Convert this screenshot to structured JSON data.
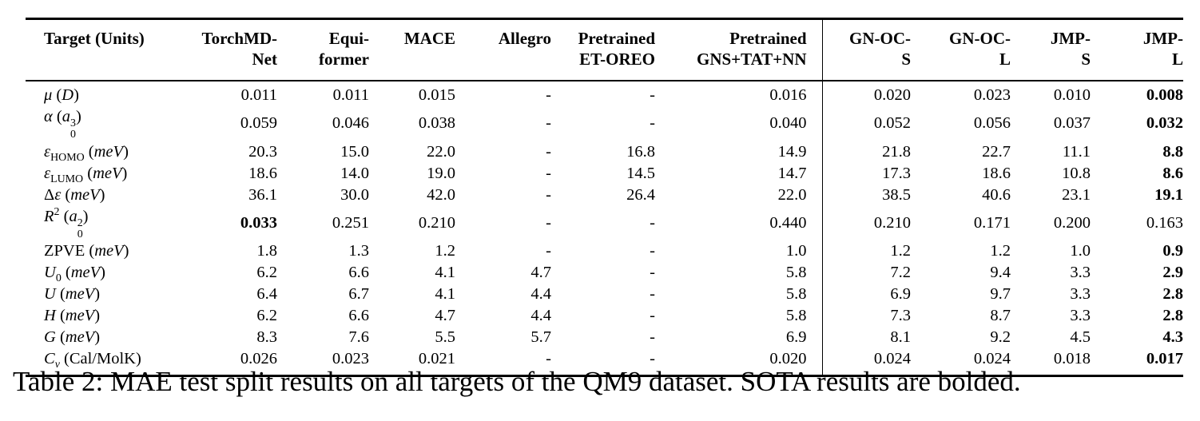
{
  "caption": "Table 2: MAE test split results on all targets of the QM9 dataset. SOTA results are bolded.",
  "table": {
    "columns": [
      {
        "name": "target-units",
        "label_lines": [
          "Target (Units)"
        ],
        "align": "left"
      },
      {
        "name": "torchmd-net",
        "label_lines": [
          "TorchMD-",
          "Net"
        ],
        "align": "right"
      },
      {
        "name": "equiformer",
        "label_lines": [
          "Equi-",
          "former"
        ],
        "align": "right"
      },
      {
        "name": "mace",
        "label_lines": [
          "MACE"
        ],
        "align": "right"
      },
      {
        "name": "allegro",
        "label_lines": [
          "Allegro"
        ],
        "align": "right"
      },
      {
        "name": "pretrained-et-oreo",
        "label_lines": [
          "Pretrained",
          "ET-OREO"
        ],
        "align": "right"
      },
      {
        "name": "pretrained-gns-tat-nn",
        "label_lines": [
          "Pretrained",
          "GNS+TAT+NN"
        ],
        "align": "right"
      },
      {
        "name": "gn-oc-s",
        "label_lines": [
          "GN-OC-",
          "S"
        ],
        "align": "right"
      },
      {
        "name": "gn-oc-l",
        "label_lines": [
          "GN-OC-",
          "L"
        ],
        "align": "right"
      },
      {
        "name": "jmp-s",
        "label_lines": [
          "JMP-",
          "S"
        ],
        "align": "right"
      },
      {
        "name": "jmp-l",
        "label_lines": [
          "JMP-",
          "L"
        ],
        "align": "right"
      }
    ],
    "rows": [
      {
        "target_text": "μ (D)",
        "label_html": "<i>μ</i> (<i>D</i>)",
        "values": [
          "0.011",
          "0.011",
          "0.015",
          "-",
          "-",
          "0.016",
          "0.020",
          "0.023",
          "0.010",
          "0.008"
        ],
        "bold_indices": [
          9
        ]
      },
      {
        "target_text": "α (a₀³)",
        "label_html": "<i>α</i> (<i>a</i><span class=\"ss\"><span>3</span><span>0</span></span>)",
        "values": [
          "0.059",
          "0.046",
          "0.038",
          "-",
          "-",
          "0.040",
          "0.052",
          "0.056",
          "0.037",
          "0.032"
        ],
        "bold_indices": [
          9
        ]
      },
      {
        "target_text": "εHOMO (meV)",
        "label_html": "<i>ε</i><sub>HOMO</sub> (<i>meV</i>)",
        "values": [
          "20.3",
          "15.0",
          "22.0",
          "-",
          "16.8",
          "14.9",
          "21.8",
          "22.7",
          "11.1",
          "8.8"
        ],
        "bold_indices": [
          9
        ]
      },
      {
        "target_text": "εLUMO (meV)",
        "label_html": "<i>ε</i><sub>LUMO</sub> (<i>meV</i>)",
        "values": [
          "18.6",
          "14.0",
          "19.0",
          "-",
          "14.5",
          "14.7",
          "17.3",
          "18.6",
          "10.8",
          "8.6"
        ],
        "bold_indices": [
          9
        ]
      },
      {
        "target_text": "Δε (meV)",
        "label_html": "Δ<i>ε</i> (<i>meV</i>)",
        "values": [
          "36.1",
          "30.0",
          "42.0",
          "-",
          "26.4",
          "22.0",
          "38.5",
          "40.6",
          "23.1",
          "19.1"
        ],
        "bold_indices": [
          9
        ]
      },
      {
        "target_text": "R² (a₀²)",
        "label_html": "<i>R</i><sup>2</sup> (<i>a</i><span class=\"ss\"><span>2</span><span>0</span></span>)",
        "values": [
          "0.033",
          "0.251",
          "0.210",
          "-",
          "-",
          "0.440",
          "0.210",
          "0.171",
          "0.200",
          "0.163"
        ],
        "bold_indices": [
          0
        ]
      },
      {
        "target_text": "ZPVE (meV)",
        "label_html": "ZPVE (<i>meV</i>)",
        "values": [
          "1.8",
          "1.3",
          "1.2",
          "-",
          "-",
          "1.0",
          "1.2",
          "1.2",
          "1.0",
          "0.9"
        ],
        "bold_indices": [
          9
        ]
      },
      {
        "target_text": "U₀ (meV)",
        "label_html": "<i>U</i><sub>0</sub> (<i>meV</i>)",
        "values": [
          "6.2",
          "6.6",
          "4.1",
          "4.7",
          "-",
          "5.8",
          "7.2",
          "9.4",
          "3.3",
          "2.9"
        ],
        "bold_indices": [
          9
        ]
      },
      {
        "target_text": "U (meV)",
        "label_html": "<i>U</i> (<i>meV</i>)",
        "values": [
          "6.4",
          "6.7",
          "4.1",
          "4.4",
          "-",
          "5.8",
          "6.9",
          "9.7",
          "3.3",
          "2.8"
        ],
        "bold_indices": [
          9
        ]
      },
      {
        "target_text": "H (meV)",
        "label_html": "<i>H</i> (<i>meV</i>)",
        "values": [
          "6.2",
          "6.6",
          "4.7",
          "4.4",
          "-",
          "5.8",
          "7.3",
          "8.7",
          "3.3",
          "2.8"
        ],
        "bold_indices": [
          9
        ]
      },
      {
        "target_text": "G (meV)",
        "label_html": "<i>G</i> (<i>meV</i>)",
        "values": [
          "8.3",
          "7.6",
          "5.5",
          "5.7",
          "-",
          "6.9",
          "8.1",
          "9.2",
          "4.5",
          "4.3"
        ],
        "bold_indices": [
          9
        ]
      },
      {
        "target_text": "Cν (Cal/MolK)",
        "label_html": "<i>C</i><sub><i>ν</i></sub> (Cal/MolK)",
        "values": [
          "0.026",
          "0.023",
          "0.021",
          "-",
          "-",
          "0.020",
          "0.024",
          "0.024",
          "0.018",
          "0.017"
        ],
        "bold_indices": [
          9
        ]
      }
    ]
  },
  "chart_data": {
    "type": "table",
    "title": "Table 2: MAE test split results on all targets of the QM9 dataset. SOTA results are bolded.",
    "categories": [
      "μ (D)",
      "α (a₀³)",
      "εHOMO (meV)",
      "εLUMO (meV)",
      "Δε (meV)",
      "R² (a₀²)",
      "ZPVE (meV)",
      "U₀ (meV)",
      "U (meV)",
      "H (meV)",
      "G (meV)",
      "Cν (Cal/MolK)"
    ],
    "series": [
      {
        "name": "TorchMD-Net",
        "values": [
          0.011,
          0.059,
          20.3,
          18.6,
          36.1,
          0.033,
          1.8,
          6.2,
          6.4,
          6.2,
          8.3,
          0.026
        ]
      },
      {
        "name": "Equiformer",
        "values": [
          0.011,
          0.046,
          15.0,
          14.0,
          30.0,
          0.251,
          1.3,
          6.6,
          6.7,
          6.6,
          7.6,
          0.023
        ]
      },
      {
        "name": "MACE",
        "values": [
          0.015,
          0.038,
          22.0,
          19.0,
          42.0,
          0.21,
          1.2,
          4.1,
          4.1,
          4.7,
          5.5,
          0.021
        ]
      },
      {
        "name": "Allegro",
        "values": [
          null,
          null,
          null,
          null,
          null,
          null,
          null,
          4.7,
          4.4,
          4.4,
          5.7,
          null
        ]
      },
      {
        "name": "Pretrained ET-OREO",
        "values": [
          null,
          null,
          16.8,
          14.5,
          26.4,
          null,
          null,
          null,
          null,
          null,
          null,
          null
        ]
      },
      {
        "name": "Pretrained GNS+TAT+NN",
        "values": [
          0.016,
          0.04,
          14.9,
          14.7,
          22.0,
          0.44,
          1.0,
          5.8,
          5.8,
          5.8,
          6.9,
          0.02
        ]
      },
      {
        "name": "GN-OC-S",
        "values": [
          0.02,
          0.052,
          21.8,
          17.3,
          38.5,
          0.21,
          1.2,
          7.2,
          6.9,
          7.3,
          8.1,
          0.024
        ]
      },
      {
        "name": "GN-OC-L",
        "values": [
          0.023,
          0.056,
          22.7,
          18.6,
          40.6,
          0.171,
          1.2,
          9.4,
          9.7,
          8.7,
          9.2,
          0.024
        ]
      },
      {
        "name": "JMP-S",
        "values": [
          0.01,
          0.037,
          11.1,
          10.8,
          23.1,
          0.2,
          1.0,
          3.3,
          3.3,
          3.3,
          4.5,
          0.018
        ]
      },
      {
        "name": "JMP-L",
        "values": [
          0.008,
          0.032,
          8.8,
          8.6,
          19.1,
          0.163,
          0.9,
          2.9,
          2.8,
          2.8,
          4.3,
          0.017
        ]
      }
    ]
  }
}
